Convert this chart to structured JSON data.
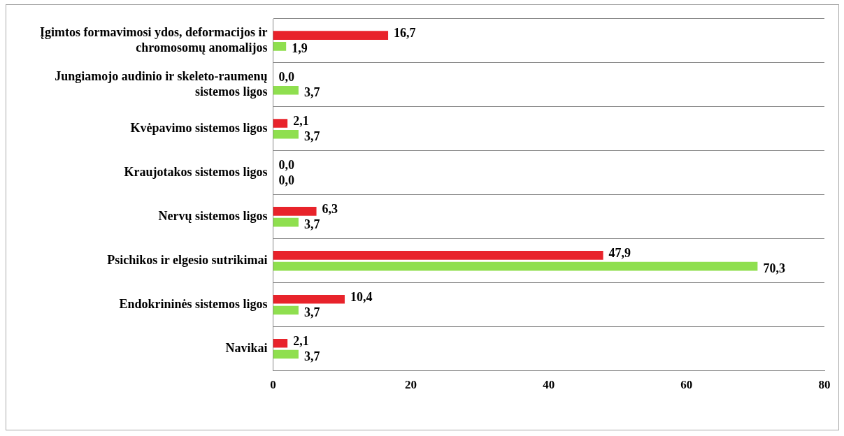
{
  "chart_data": {
    "type": "bar",
    "orientation": "horizontal",
    "categories": [
      "Įgimtos formavimosi ydos, deformacijos ir chromosomų anomalijos",
      "Jungiamojo audinio ir skeleto-raumenų sistemos ligos",
      "Kvėpavimo sistemos ligos",
      "Kraujotakos sistemos ligos",
      "Nervų sistemos ligos",
      "Psichikos ir elgesio sutrikimai",
      "Endokrininės sistemos ligos",
      "Navikai"
    ],
    "series": [
      {
        "color": "#e8232b",
        "values": [
          16.7,
          0.0,
          2.1,
          0.0,
          6.3,
          47.9,
          10.4,
          2.1
        ],
        "value_labels": [
          "16,7",
          "0,0",
          "2,1",
          "0,0",
          "6,3",
          "47,9",
          "10,4",
          "2,1"
        ]
      },
      {
        "color": "#8fdf4f",
        "values": [
          1.9,
          3.7,
          3.7,
          0.0,
          3.7,
          70.3,
          3.7,
          3.7
        ],
        "value_labels": [
          "1,9",
          "3,7",
          "3,7",
          "0,0",
          "3,7",
          "70,3",
          "3,7",
          "3,7"
        ]
      }
    ],
    "xlim": [
      0,
      80
    ],
    "xticks": [
      0,
      20,
      40,
      60,
      80
    ],
    "grid": "y",
    "legend": false
  }
}
